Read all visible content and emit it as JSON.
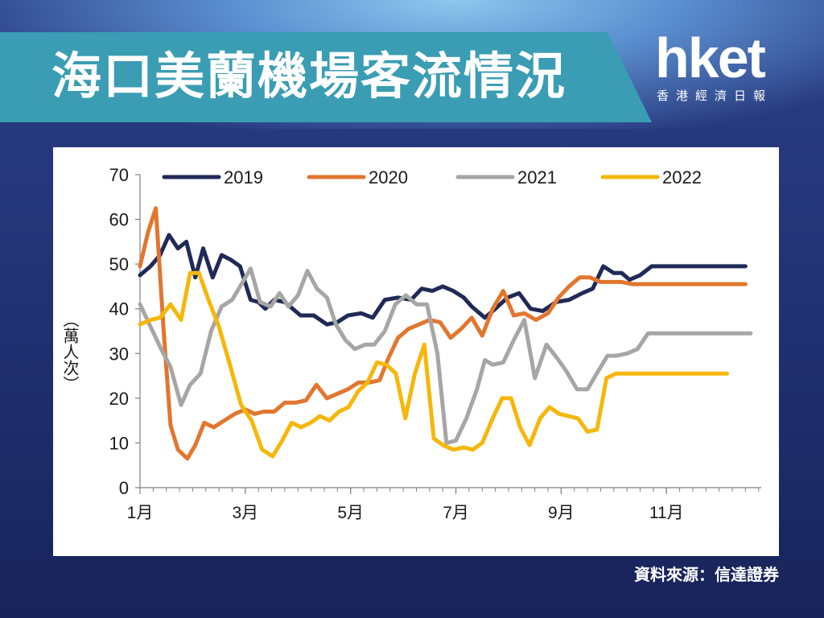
{
  "header": {
    "title": "海口美蘭機場客流情況"
  },
  "logo": {
    "main": "hket",
    "sub": "香港經濟日報"
  },
  "source": "資料來源：信達證券",
  "colors": {
    "series_2019": "#1f2a57",
    "series_2020": "#e2762e",
    "series_2021": "#a6a6a6",
    "series_2022": "#f5b70a"
  },
  "chart_data": {
    "type": "line",
    "title": "",
    "xlabel": "",
    "ylabel": "（萬人次）",
    "ylim": [
      0,
      70
    ],
    "yticks": [
      0,
      10,
      20,
      30,
      40,
      50,
      60,
      70
    ],
    "xlim": [
      1,
      12.8
    ],
    "xticks": [
      {
        "value": 1,
        "label": "1月"
      },
      {
        "value": 3,
        "label": "3月"
      },
      {
        "value": 5,
        "label": "5月"
      },
      {
        "value": 7,
        "label": "7月"
      },
      {
        "value": 9,
        "label": "9月"
      },
      {
        "value": 11,
        "label": "11月"
      }
    ],
    "legend_position": "top",
    "series": [
      {
        "name": "2019",
        "color": "#1f2a57",
        "x": [
          1.0,
          1.2,
          1.38,
          1.55,
          1.72,
          1.88,
          2.05,
          2.2,
          2.38,
          2.55,
          2.72,
          2.9,
          3.1,
          3.25,
          3.38,
          3.55,
          3.75,
          4.05,
          4.3,
          4.55,
          4.75,
          4.95,
          5.2,
          5.42,
          5.65,
          5.9,
          6.15,
          6.35,
          6.55,
          6.75,
          6.95,
          7.15,
          7.3,
          7.55,
          7.75,
          7.98,
          8.2,
          8.42,
          8.65,
          8.9,
          9.15,
          9.4,
          9.6,
          9.8,
          10.0,
          10.15,
          10.3,
          10.5,
          10.72,
          10.95,
          11.15,
          11.38,
          11.6,
          11.82,
          12.05,
          12.3,
          12.5
        ],
        "values": [
          47.5,
          49.5,
          52,
          56.5,
          53.5,
          55,
          47,
          53.5,
          47,
          52,
          51,
          49.5,
          42,
          41.5,
          40,
          42,
          41.5,
          38.5,
          38.5,
          36.5,
          37,
          38.5,
          39,
          38,
          42,
          42.5,
          42,
          44.5,
          44,
          45,
          44,
          42.5,
          40.5,
          38,
          40,
          42.5,
          43.5,
          40,
          39.5,
          41.5,
          42,
          43.5,
          44.5,
          49.5,
          48,
          48,
          46.5,
          47.5,
          49.5,
          49.5,
          49.5,
          49.5,
          49.5,
          49.5,
          49.5,
          49.5,
          49.5
        ]
      },
      {
        "name": "2020",
        "color": "#e2762e",
        "x": [
          1.0,
          1.15,
          1.3,
          1.45,
          1.58,
          1.72,
          1.9,
          2.05,
          2.22,
          2.4,
          2.6,
          2.8,
          3.0,
          3.18,
          3.35,
          3.55,
          3.75,
          3.95,
          4.15,
          4.35,
          4.55,
          4.75,
          4.95,
          5.15,
          5.35,
          5.55,
          5.72,
          5.9,
          6.1,
          6.3,
          6.5,
          6.7,
          6.9,
          7.1,
          7.3,
          7.5,
          7.7,
          7.9,
          8.1,
          8.3,
          8.52,
          8.75,
          8.95,
          9.15,
          9.35,
          9.55,
          9.75,
          9.95,
          10.15,
          10.35,
          10.55,
          10.75,
          10.95,
          11.15,
          11.35,
          11.55,
          11.75,
          11.95,
          12.15,
          12.35,
          12.5
        ],
        "values": [
          49.5,
          57,
          62.5,
          35,
          14,
          8.5,
          6.5,
          9.5,
          14.5,
          13.5,
          15,
          16.5,
          17.5,
          16.5,
          17,
          17,
          19,
          19,
          19.5,
          23,
          20,
          21,
          22,
          23.5,
          23.5,
          24,
          29,
          33.5,
          35.5,
          36.5,
          37.5,
          37,
          33.5,
          35.5,
          38,
          34,
          40,
          44,
          38.5,
          39,
          37.5,
          39,
          42.5,
          45,
          47,
          47,
          46,
          46,
          46,
          45.5,
          45.5,
          45.5,
          45.5,
          45.5,
          45.5,
          45.5,
          45.5,
          45.5,
          45.5,
          45.5,
          45.5
        ]
      },
      {
        "name": "2021",
        "color": "#a6a6a6",
        "x": [
          1.0,
          1.2,
          1.4,
          1.58,
          1.78,
          1.95,
          2.15,
          2.35,
          2.55,
          2.75,
          2.95,
          3.1,
          3.28,
          3.48,
          3.65,
          3.82,
          4.0,
          4.18,
          4.36,
          4.55,
          4.72,
          4.9,
          5.08,
          5.28,
          5.45,
          5.65,
          5.85,
          6.05,
          6.25,
          6.45,
          6.65,
          6.82,
          7.0,
          7.2,
          7.4,
          7.55,
          7.7,
          7.9,
          8.1,
          8.3,
          8.5,
          8.72,
          8.92,
          9.1,
          9.3,
          9.5,
          9.7,
          9.88,
          10.05,
          10.25,
          10.45,
          10.65,
          10.85,
          11.05,
          11.25,
          11.45,
          11.65,
          11.85,
          12.05,
          12.25,
          12.45,
          12.6
        ],
        "values": [
          41,
          36,
          31,
          27,
          18.5,
          23,
          25.5,
          35,
          40.5,
          42,
          46,
          49,
          41.5,
          40.5,
          43.5,
          40.5,
          43,
          48.5,
          44.5,
          42.5,
          36.5,
          33,
          31,
          32,
          32,
          35,
          41,
          43,
          41,
          41,
          30,
          10,
          10.5,
          15.5,
          22,
          28.5,
          27.5,
          28,
          33,
          37.5,
          24.5,
          32,
          29,
          26,
          22,
          22,
          26,
          29.5,
          29.5,
          30,
          31,
          34.5,
          34.5,
          34.5,
          34.5,
          34.5,
          34.5,
          34.5,
          34.5,
          34.5,
          34.5,
          34.5
        ]
      },
      {
        "name": "2022",
        "color": "#f5b70a",
        "x": [
          1.0,
          1.2,
          1.38,
          1.58,
          1.78,
          1.95,
          2.12,
          2.3,
          2.5,
          2.72,
          2.92,
          3.12,
          3.32,
          3.52,
          3.7,
          3.88,
          4.06,
          4.24,
          4.42,
          4.6,
          4.78,
          4.96,
          5.14,
          5.32,
          5.5,
          5.68,
          5.86,
          6.04,
          6.22,
          6.4,
          6.58,
          6.76,
          6.95,
          7.15,
          7.32,
          7.5,
          7.7,
          7.88,
          8.05,
          8.22,
          8.4,
          8.6,
          8.78,
          8.96,
          9.14,
          9.32,
          9.5,
          9.68,
          9.86,
          10.04,
          10.22,
          10.4,
          10.58,
          10.76,
          10.95,
          11.15,
          11.35,
          11.55,
          11.75,
          11.95,
          12.15
        ],
        "values": [
          36.5,
          37.5,
          38,
          41,
          37.5,
          48,
          48,
          42,
          36,
          27,
          18.5,
          15,
          8.5,
          7,
          10.5,
          14.5,
          13.5,
          14.5,
          16,
          15,
          17,
          18,
          21.5,
          23.5,
          28,
          27.5,
          25.5,
          15.5,
          25.5,
          32,
          11,
          9.5,
          8.5,
          9,
          8.5,
          10,
          15.5,
          20,
          20,
          13.5,
          9.5,
          15.5,
          18,
          16.5,
          16,
          15.5,
          12.5,
          13,
          24.5,
          25.5,
          25.5,
          25.5,
          25.5,
          25.5,
          25.5,
          25.5,
          25.5,
          25.5,
          25.5,
          25.5,
          25.5
        ]
      }
    ]
  }
}
